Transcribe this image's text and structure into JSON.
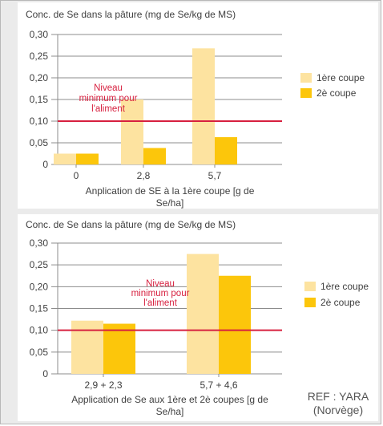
{
  "colors": {
    "series1": "#fde3a0",
    "series2": "#fcc60b",
    "threshold": "#d7203f",
    "axis_text": "#404040",
    "grid": "#8c8c8c",
    "background": "#ebebeb"
  },
  "reference": {
    "line1": "REF : YARA",
    "line2": "(Norvège)"
  },
  "chart_data": [
    {
      "type": "bar",
      "title": "Conc. de Se dans la pâture (mg de Se/kg de MS)",
      "xlabel": "Anplication de SE à la 1ère coupe [g de Se/ha]",
      "xlabel_lines": [
        "Anplication de SE à la 1ère coupe [g de",
        "Se/ha]"
      ],
      "ylabel": "",
      "categories": [
        "0",
        "2,8",
        "5,7"
      ],
      "series": [
        {
          "name": "1ère coupe",
          "values": [
            0.025,
            0.15,
            0.268
          ]
        },
        {
          "name": "2è coupe",
          "values": [
            0.025,
            0.038,
            0.063
          ]
        }
      ],
      "ylim": [
        0,
        0.3
      ],
      "yticks": [
        "0",
        "0,05",
        "0,10",
        "0,15",
        "0,20",
        "0,25",
        "0,30"
      ],
      "grid": true,
      "legend": "right",
      "threshold": {
        "value": 0.1,
        "label_lines": [
          "Niveau",
          "minimum pour",
          "l'aliment"
        ]
      }
    },
    {
      "type": "bar",
      "title": "Conc. de Se dans la pâture (mg de Se/kg de MS)",
      "xlabel": "Application de Se aux 1ère et 2è coupes [g de Se/ha]",
      "xlabel_lines": [
        "Application de Se aux 1ère et 2è coupes [g de",
        "Se/ha]"
      ],
      "ylabel": "",
      "categories": [
        "2,9 + 2,3",
        "5,7 + 4,6"
      ],
      "series": [
        {
          "name": "1ère coupe",
          "values": [
            0.122,
            0.275
          ]
        },
        {
          "name": "2è coupe",
          "values": [
            0.115,
            0.225
          ]
        }
      ],
      "ylim": [
        0,
        0.3
      ],
      "yticks": [
        "0",
        "0,05",
        "0,10",
        "0,15",
        "0,20",
        "0,25",
        "0,30"
      ],
      "grid": true,
      "legend": "right",
      "threshold": {
        "value": 0.1,
        "label_lines": [
          "Niveau",
          "minimum pour",
          "l'aliment"
        ]
      }
    }
  ]
}
